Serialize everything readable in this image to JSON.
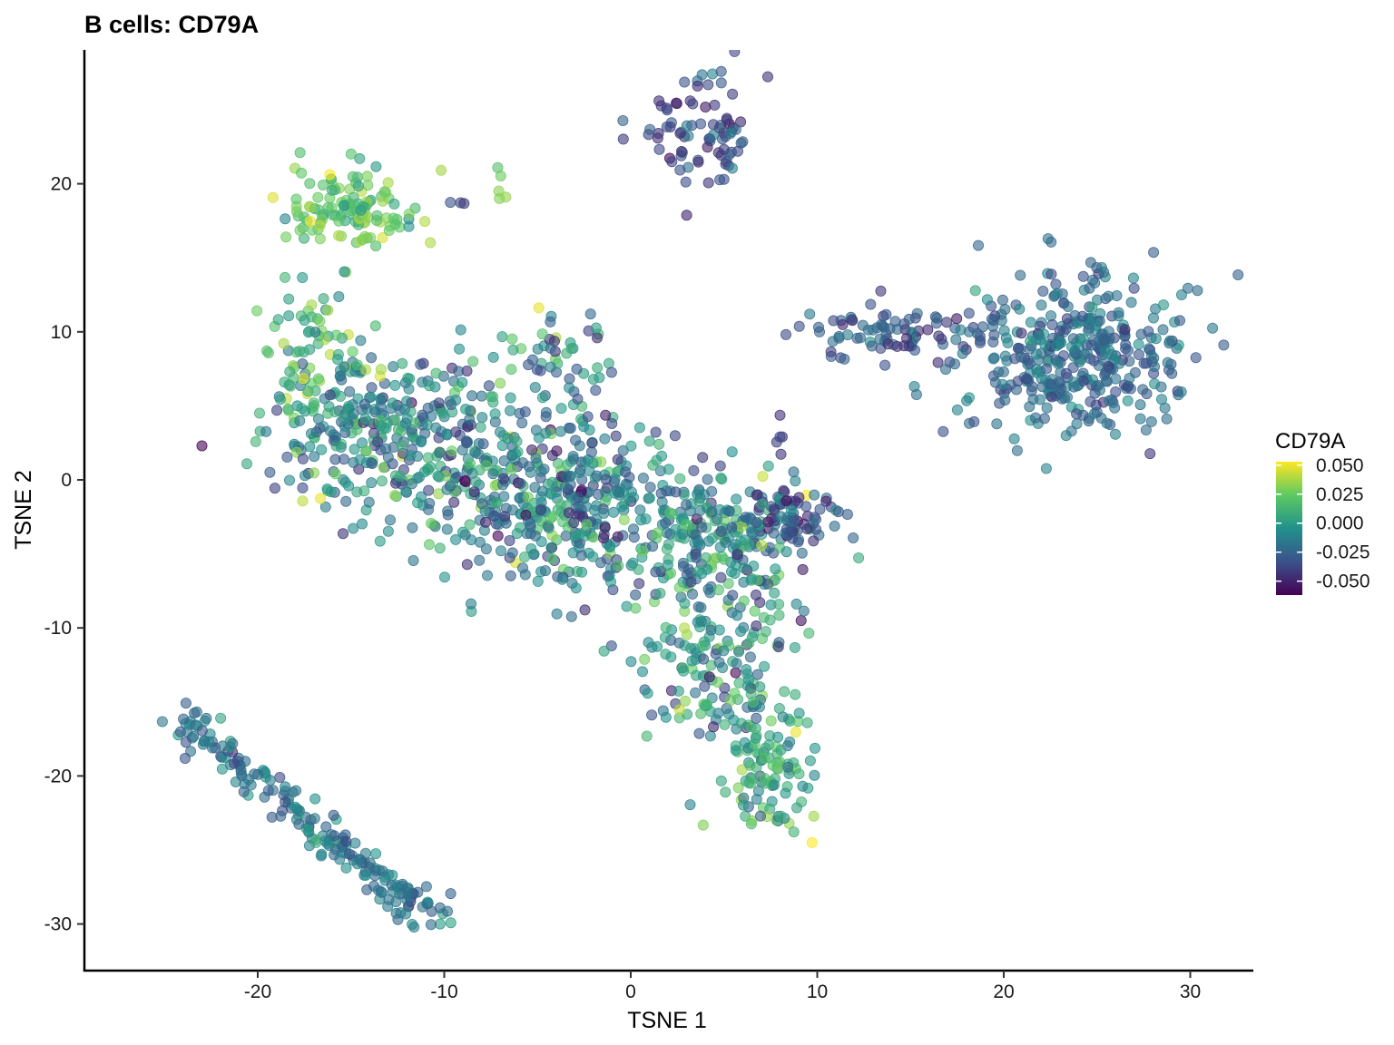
{
  "chart_data": {
    "type": "scatter",
    "title": "B cells: CD79A",
    "xlabel": "TSNE 1",
    "ylabel": "TSNE 2",
    "xlim": [
      -29,
      33
    ],
    "ylim": [
      -33,
      29
    ],
    "x_ticks": [
      -20,
      -10,
      0,
      10,
      20,
      30
    ],
    "x_tick_labels": [
      "-20",
      "-10",
      "0",
      "10",
      "20",
      "30"
    ],
    "y_ticks": [
      -30,
      -20,
      -10,
      0,
      10,
      20
    ],
    "y_tick_labels": [
      "-30",
      "-20",
      "-10",
      "0",
      "10",
      "20"
    ],
    "grid": false,
    "legend": {
      "title": "CD79A",
      "position": "right",
      "range": [
        -0.062,
        0.053
      ],
      "ticks": [
        0.05,
        0.025,
        0.0,
        -0.025,
        -0.05
      ],
      "tick_labels": [
        "0.050",
        "0.025",
        "0.000",
        "-0.025",
        "-0.050"
      ]
    },
    "colorscale": [
      "#440154",
      "#3b528b",
      "#21918c",
      "#5ec962",
      "#fde725"
    ],
    "point_alpha": 0.6,
    "clusters": [
      {
        "center": [
          -15,
          18.5
        ],
        "spread": [
          1.8,
          1.3
        ],
        "n": 120,
        "mean": 0.022,
        "sd": 0.012
      },
      {
        "center": [
          4.2,
          23.3
        ],
        "spread": [
          1.5,
          1.9
        ],
        "n": 75,
        "mean": -0.035,
        "sd": 0.012
      },
      {
        "center": [
          23.8,
          8.5
        ],
        "spread": [
          3.0,
          2.8
        ],
        "n": 380,
        "mean": -0.022,
        "sd": 0.01
      },
      {
        "center": [
          14.0,
          9.8
        ],
        "spread": [
          2.4,
          0.9
        ],
        "n": 80,
        "mean": -0.03,
        "sd": 0.01
      },
      {
        "center": [
          -12.5,
          3.0
        ],
        "spread": [
          3.5,
          2.6
        ],
        "n": 320,
        "mean": -0.01,
        "sd": 0.02
      },
      {
        "center": [
          -16.5,
          8.0
        ],
        "spread": [
          1.6,
          2.2
        ],
        "n": 90,
        "mean": 0.012,
        "sd": 0.018
      },
      {
        "center": [
          -4.0,
          -1.5
        ],
        "spread": [
          3.5,
          2.8
        ],
        "n": 380,
        "mean": -0.012,
        "sd": 0.02
      },
      {
        "center": [
          4.5,
          -3.5
        ],
        "spread": [
          2.8,
          2.2
        ],
        "n": 220,
        "mean": -0.008,
        "sd": 0.02
      },
      {
        "center": [
          8.5,
          -2.5
        ],
        "spread": [
          1.4,
          1.1
        ],
        "n": 70,
        "mean": -0.032,
        "sd": 0.012
      },
      {
        "center": [
          4.5,
          -12.0
        ],
        "spread": [
          2.3,
          3.0
        ],
        "n": 170,
        "mean": -0.008,
        "sd": 0.02
      },
      {
        "center": [
          7.3,
          -19.5
        ],
        "spread": [
          1.4,
          2.2
        ],
        "n": 110,
        "mean": 0.005,
        "sd": 0.018
      },
      {
        "center": [
          -4.0,
          8.5
        ],
        "spread": [
          1.4,
          1.8
        ],
        "n": 50,
        "mean": -0.005,
        "sd": 0.02
      },
      {
        "center": [
          8.1,
          3.2
        ],
        "spread": [
          0.15,
          0.5
        ],
        "n": 5,
        "mean": -0.04,
        "sd": 0.005
      },
      {
        "center": [
          -7.0,
          20.0
        ],
        "spread": [
          0.2,
          0.7
        ],
        "n": 5,
        "mean": 0.03,
        "sd": 0.006
      },
      {
        "center": [
          -9.3,
          18.7
        ],
        "spread": [
          0.25,
          0.1
        ],
        "n": 3,
        "mean": -0.04,
        "sd": 0.005
      },
      {
        "center": [
          1.5,
          23.5
        ],
        "spread": [
          0.6,
          0.3
        ],
        "n": 8,
        "mean": -0.04,
        "sd": 0.008
      }
    ],
    "trajectory": {
      "from": [
        -24.5,
        -16.0
      ],
      "to": [
        -10.5,
        -29.8
      ],
      "n": 200,
      "jitter": 0.6,
      "mean": -0.018,
      "sd": 0.01
    }
  }
}
